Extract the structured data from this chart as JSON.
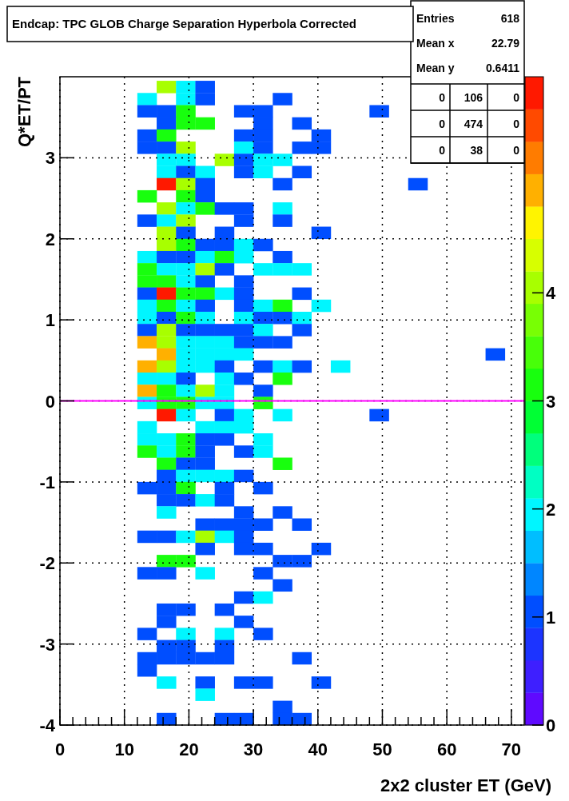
{
  "chart_data": {
    "type": "heatmap",
    "title": "Endcap: TPC GLOB Charge Separation Hyperbola Corrected",
    "xlabel": "2x2 cluster ET (GeV)",
    "ylabel": "Q*ET/PT",
    "x": [
      1.5,
      4.5,
      7.5,
      10.5,
      13.5,
      16.5,
      19.5,
      22.5,
      25.5,
      28.5,
      31.5,
      34.5,
      37.5,
      40.5,
      43.5,
      46.5,
      49.5,
      52.5,
      55.5,
      58.5,
      61.5,
      64.5,
      67.5,
      70.5
    ],
    "y": [
      3.875,
      3.725,
      3.575,
      3.425,
      3.275,
      3.125,
      2.975,
      2.825,
      2.675,
      2.525,
      2.375,
      2.225,
      2.075,
      1.925,
      1.775,
      1.625,
      1.475,
      1.325,
      1.175,
      1.025,
      0.875,
      0.725,
      0.575,
      0.425,
      0.275,
      0.125,
      -0.025,
      -0.175,
      -0.325,
      -0.475,
      -0.625,
      -0.775,
      -0.925,
      -1.075,
      -1.225,
      -1.375,
      -1.525,
      -1.675,
      -1.825,
      -1.975,
      -2.125,
      -2.275,
      -2.425,
      -2.575,
      -2.725,
      -2.875,
      -3.025,
      -3.175,
      -3.325,
      -3.475,
      -3.625,
      -3.775,
      -3.925
    ],
    "xlim": [
      0,
      72
    ],
    "xticks": [
      0,
      {
        "value": 2,
        "label": null
      },
      {
        "value": 4,
        "label": null
      },
      {
        "value": 6,
        "label": null
      },
      {
        "value": 8,
        "label": null
      },
      10,
      {
        "value": 12,
        "label": null
      },
      {
        "value": 14,
        "label": null
      },
      {
        "value": 16,
        "label": null
      },
      {
        "value": 18,
        "label": null
      },
      20,
      {
        "value": 22,
        "label": null
      },
      {
        "value": 24,
        "label": null
      },
      {
        "value": 26,
        "label": null
      },
      {
        "value": 28,
        "label": null
      },
      30,
      {
        "value": 32,
        "label": null
      },
      {
        "value": 34,
        "label": null
      },
      {
        "value": 36,
        "label": null
      },
      {
        "value": 38,
        "label": null
      },
      40,
      {
        "value": 42,
        "label": null
      },
      {
        "value": 44,
        "label": null
      },
      {
        "value": 46,
        "label": null
      },
      {
        "value": 48,
        "label": null
      },
      50,
      {
        "value": 52,
        "label": null
      },
      {
        "value": 54,
        "label": null
      },
      {
        "value": 56,
        "label": null
      },
      {
        "value": 58,
        "label": null
      },
      60,
      {
        "value": 62,
        "label": null
      },
      {
        "value": 64,
        "label": null
      },
      {
        "value": 66,
        "label": null
      },
      {
        "value": 68,
        "label": null
      },
      70
    ],
    "ylim": [
      -4,
      4
    ],
    "yticks": [
      -4,
      -3,
      -2,
      -1,
      0,
      1,
      2,
      3
    ],
    "clim": [
      0,
      6
    ],
    "cticks": [
      0,
      1,
      2,
      3,
      4
    ],
    "grid": true,
    "ref_lines": [
      {
        "axis": "y",
        "value": 0,
        "color": "#ff00ff"
      }
    ],
    "annotations": [
      "Entries",
      "618",
      "Mean x",
      "22.79",
      "Mean y",
      "0.6411",
      "0",
      "106",
      "0",
      "0",
      "474",
      "0",
      "0",
      "38",
      "0"
    ],
    "cells": [
      [
        null,
        null,
        null,
        null,
        null,
        4,
        2,
        1,
        null,
        null,
        null,
        null,
        null,
        null,
        null,
        null,
        null,
        null,
        null,
        null,
        null,
        null,
        null,
        null
      ],
      [
        null,
        null,
        null,
        null,
        2,
        null,
        2,
        1,
        null,
        null,
        null,
        1,
        null,
        null,
        null,
        null,
        null,
        null,
        null,
        null,
        null,
        null,
        null,
        null
      ],
      [
        null,
        null,
        null,
        null,
        1,
        1,
        3,
        null,
        null,
        1,
        1,
        null,
        null,
        null,
        null,
        null,
        1,
        null,
        null,
        null,
        null,
        null,
        null,
        null
      ],
      [
        null,
        null,
        null,
        null,
        null,
        1,
        3,
        3,
        null,
        null,
        1,
        null,
        1,
        null,
        null,
        null,
        null,
        null,
        null,
        null,
        null,
        null,
        null,
        null
      ],
      [
        null,
        null,
        null,
        null,
        1,
        3,
        null,
        null,
        null,
        1,
        1,
        null,
        null,
        1,
        null,
        null,
        null,
        null,
        null,
        null,
        null,
        null,
        null,
        null
      ],
      [
        null,
        null,
        null,
        null,
        1,
        1,
        4,
        null,
        null,
        2,
        1,
        null,
        1,
        1,
        null,
        null,
        null,
        null,
        null,
        null,
        null,
        null,
        null,
        null
      ],
      [
        null,
        null,
        null,
        null,
        null,
        2,
        2,
        null,
        4,
        1,
        2,
        2,
        null,
        null,
        null,
        null,
        null,
        null,
        null,
        null,
        null,
        null,
        null,
        null
      ],
      [
        null,
        null,
        null,
        null,
        null,
        2,
        1,
        2,
        null,
        1,
        2,
        null,
        1,
        null,
        null,
        null,
        null,
        null,
        null,
        null,
        null,
        null,
        null,
        null
      ],
      [
        null,
        null,
        null,
        null,
        null,
        6,
        4,
        1,
        null,
        null,
        null,
        1,
        null,
        null,
        null,
        null,
        null,
        null,
        1,
        null,
        null,
        null,
        null,
        null
      ],
      [
        null,
        null,
        null,
        null,
        3,
        null,
        3,
        1,
        null,
        null,
        null,
        null,
        null,
        null,
        null,
        null,
        null,
        null,
        null,
        null,
        null,
        null,
        null,
        null
      ],
      [
        null,
        null,
        null,
        null,
        null,
        4,
        2,
        3,
        1,
        1,
        null,
        2,
        null,
        null,
        null,
        null,
        null,
        null,
        null,
        null,
        null,
        null,
        null,
        null
      ],
      [
        null,
        null,
        null,
        null,
        1,
        2,
        4,
        null,
        null,
        1,
        null,
        1,
        null,
        null,
        null,
        null,
        null,
        null,
        null,
        null,
        null,
        null,
        null,
        null
      ],
      [
        null,
        null,
        null,
        null,
        null,
        4,
        1,
        null,
        1,
        null,
        null,
        null,
        null,
        1,
        null,
        null,
        null,
        null,
        null,
        null,
        null,
        null,
        null,
        null
      ],
      [
        null,
        null,
        null,
        null,
        null,
        4,
        3,
        1,
        1,
        2,
        1,
        null,
        null,
        null,
        null,
        null,
        null,
        null,
        null,
        null,
        null,
        null,
        null,
        null
      ],
      [
        null,
        null,
        null,
        null,
        2,
        1,
        1,
        2,
        3,
        2,
        null,
        1,
        null,
        null,
        null,
        null,
        null,
        null,
        null,
        null,
        null,
        null,
        null,
        null
      ],
      [
        null,
        null,
        null,
        null,
        3,
        2,
        2,
        4,
        1,
        null,
        2,
        2,
        2,
        null,
        null,
        null,
        null,
        null,
        null,
        null,
        null,
        null,
        null,
        null
      ],
      [
        null,
        null,
        null,
        null,
        3,
        3,
        2,
        1,
        null,
        1,
        null,
        null,
        null,
        null,
        null,
        null,
        null,
        null,
        null,
        null,
        null,
        null,
        null,
        null
      ],
      [
        null,
        null,
        null,
        null,
        1,
        6,
        3,
        3,
        2,
        1,
        null,
        null,
        1,
        null,
        null,
        null,
        null,
        null,
        null,
        null,
        null,
        null,
        null,
        null
      ],
      [
        null,
        null,
        null,
        null,
        2,
        3,
        2,
        1,
        null,
        1,
        2,
        3,
        null,
        2,
        null,
        null,
        null,
        null,
        null,
        null,
        null,
        null,
        null,
        null
      ],
      [
        null,
        null,
        null,
        null,
        2,
        1,
        3,
        2,
        null,
        2,
        1,
        1,
        2,
        null,
        null,
        null,
        null,
        null,
        null,
        null,
        null,
        null,
        null,
        null
      ],
      [
        null,
        null,
        null,
        null,
        1,
        4,
        1,
        1,
        1,
        1,
        2,
        null,
        1,
        null,
        null,
        null,
        null,
        null,
        null,
        null,
        null,
        null,
        null,
        null
      ],
      [
        null,
        null,
        null,
        null,
        5,
        4,
        2,
        2,
        2,
        1,
        1,
        1,
        null,
        null,
        null,
        null,
        null,
        null,
        null,
        null,
        null,
        null,
        null,
        null
      ],
      [
        null,
        null,
        null,
        null,
        null,
        5,
        2,
        2,
        2,
        2,
        null,
        null,
        null,
        null,
        null,
        null,
        null,
        null,
        null,
        null,
        null,
        null,
        1,
        null
      ],
      [
        null,
        null,
        null,
        null,
        5,
        4,
        2,
        2,
        1,
        null,
        1,
        2,
        1,
        null,
        2,
        null,
        null,
        null,
        null,
        null,
        null,
        null,
        null,
        null
      ],
      [
        null,
        null,
        null,
        null,
        2,
        2,
        1,
        null,
        2,
        1,
        null,
        3,
        null,
        null,
        null,
        null,
        null,
        null,
        null,
        null,
        null,
        null,
        null,
        null
      ],
      [
        null,
        null,
        null,
        null,
        5,
        3,
        2,
        4,
        2,
        null,
        1,
        null,
        null,
        null,
        null,
        null,
        null,
        null,
        null,
        null,
        null,
        null,
        null,
        null
      ],
      [
        null,
        null,
        null,
        null,
        2,
        3,
        3,
        2,
        2,
        null,
        3,
        null,
        null,
        null,
        null,
        null,
        null,
        null,
        null,
        null,
        null,
        null,
        null,
        null
      ],
      [
        null,
        null,
        null,
        null,
        null,
        6,
        2,
        null,
        1,
        2,
        null,
        2,
        null,
        null,
        null,
        null,
        1,
        null,
        null,
        null,
        null,
        null,
        null,
        null
      ],
      [
        null,
        null,
        null,
        null,
        2,
        null,
        null,
        2,
        2,
        2,
        null,
        null,
        null,
        null,
        null,
        null,
        null,
        null,
        null,
        null,
        null,
        null,
        null,
        null
      ],
      [
        null,
        null,
        null,
        null,
        2,
        2,
        3,
        1,
        1,
        null,
        2,
        null,
        null,
        null,
        null,
        null,
        null,
        null,
        null,
        null,
        null,
        null,
        null,
        null
      ],
      [
        null,
        null,
        null,
        null,
        3,
        2,
        3,
        1,
        null,
        1,
        2,
        null,
        null,
        null,
        null,
        null,
        null,
        null,
        null,
        null,
        null,
        null,
        null,
        null
      ],
      [
        null,
        null,
        null,
        null,
        null,
        3,
        1,
        1,
        null,
        null,
        null,
        3,
        null,
        null,
        null,
        null,
        null,
        null,
        null,
        null,
        null,
        null,
        null,
        null
      ],
      [
        null,
        null,
        null,
        null,
        null,
        1,
        2,
        2,
        2,
        1,
        null,
        null,
        null,
        null,
        null,
        null,
        null,
        null,
        null,
        null,
        null,
        null,
        null,
        null
      ],
      [
        null,
        null,
        null,
        null,
        1,
        1,
        3,
        null,
        1,
        null,
        1,
        null,
        null,
        null,
        null,
        null,
        null,
        null,
        null,
        null,
        null,
        null,
        null,
        null
      ],
      [
        null,
        null,
        null,
        null,
        null,
        1,
        1,
        2,
        1,
        null,
        null,
        null,
        null,
        null,
        null,
        null,
        null,
        null,
        null,
        null,
        null,
        null,
        null,
        null
      ],
      [
        null,
        null,
        null,
        null,
        null,
        2,
        null,
        null,
        null,
        1,
        null,
        1,
        null,
        null,
        null,
        null,
        null,
        null,
        null,
        null,
        null,
        null,
        null,
        null
      ],
      [
        null,
        null,
        null,
        null,
        null,
        null,
        null,
        1,
        1,
        1,
        1,
        null,
        1,
        null,
        null,
        null,
        null,
        null,
        null,
        null,
        null,
        null,
        null,
        null
      ],
      [
        null,
        null,
        null,
        null,
        1,
        1,
        2,
        4,
        2,
        1,
        null,
        null,
        null,
        null,
        null,
        null,
        null,
        null,
        null,
        null,
        null,
        null,
        null,
        null
      ],
      [
        null,
        null,
        null,
        null,
        null,
        null,
        null,
        1,
        null,
        1,
        1,
        null,
        null,
        1,
        null,
        null,
        null,
        null,
        null,
        null,
        null,
        null,
        null,
        null
      ],
      [
        null,
        null,
        null,
        null,
        null,
        3,
        3,
        null,
        null,
        null,
        null,
        1,
        1,
        null,
        null,
        null,
        null,
        null,
        null,
        null,
        null,
        null,
        null,
        null
      ],
      [
        null,
        null,
        null,
        null,
        1,
        1,
        null,
        2,
        null,
        null,
        1,
        null,
        null,
        null,
        null,
        null,
        null,
        null,
        null,
        null,
        null,
        null,
        null,
        null
      ],
      [
        null,
        null,
        null,
        null,
        null,
        null,
        null,
        null,
        null,
        null,
        null,
        1,
        null,
        null,
        null,
        null,
        null,
        null,
        null,
        null,
        null,
        null,
        null,
        null
      ],
      [
        null,
        null,
        null,
        null,
        null,
        null,
        null,
        null,
        null,
        1,
        2,
        null,
        null,
        null,
        null,
        null,
        null,
        null,
        null,
        null,
        null,
        null,
        null,
        null
      ],
      [
        null,
        null,
        null,
        null,
        null,
        1,
        1,
        null,
        1,
        null,
        null,
        null,
        null,
        null,
        null,
        null,
        null,
        null,
        null,
        null,
        null,
        null,
        null,
        null
      ],
      [
        null,
        null,
        null,
        null,
        null,
        1,
        null,
        null,
        null,
        1,
        null,
        null,
        null,
        null,
        null,
        null,
        null,
        null,
        null,
        null,
        null,
        null,
        null,
        null
      ],
      [
        null,
        null,
        null,
        null,
        1,
        null,
        2,
        null,
        2,
        null,
        1,
        null,
        null,
        null,
        null,
        null,
        null,
        null,
        null,
        null,
        null,
        null,
        null,
        null
      ],
      [
        null,
        null,
        null,
        null,
        null,
        1,
        1,
        null,
        1,
        null,
        null,
        null,
        null,
        null,
        null,
        null,
        null,
        null,
        null,
        null,
        null,
        null,
        null,
        null
      ],
      [
        null,
        null,
        null,
        null,
        1,
        1,
        1,
        1,
        1,
        null,
        null,
        null,
        1,
        null,
        null,
        null,
        null,
        null,
        null,
        null,
        null,
        null,
        null,
        null
      ],
      [
        null,
        null,
        null,
        null,
        1,
        null,
        null,
        null,
        null,
        null,
        null,
        null,
        null,
        null,
        null,
        null,
        null,
        null,
        null,
        null,
        null,
        null,
        null,
        null
      ],
      [
        null,
        null,
        null,
        null,
        null,
        2,
        null,
        1,
        null,
        1,
        1,
        null,
        null,
        1,
        null,
        null,
        null,
        null,
        null,
        null,
        null,
        null,
        null,
        null
      ],
      [
        null,
        null,
        null,
        null,
        null,
        null,
        null,
        2,
        null,
        null,
        null,
        null,
        null,
        null,
        null,
        null,
        null,
        null,
        null,
        null,
        null,
        null,
        null,
        null
      ],
      [
        null,
        null,
        null,
        null,
        null,
        null,
        null,
        null,
        null,
        null,
        null,
        1,
        null,
        null,
        null,
        null,
        null,
        null,
        null,
        null,
        null,
        null,
        null,
        null
      ],
      [
        null,
        null,
        null,
        null,
        null,
        1,
        null,
        null,
        1,
        1,
        null,
        1,
        1,
        null,
        null,
        null,
        null,
        null,
        null,
        null,
        null,
        null,
        null,
        null
      ]
    ]
  }
}
